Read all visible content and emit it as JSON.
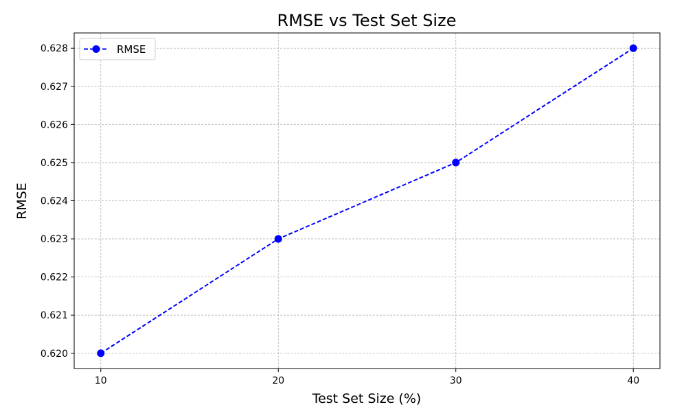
{
  "chart_data": {
    "type": "line",
    "title": "RMSE vs Test Set Size",
    "xlabel": "Test Set Size (%)",
    "ylabel": "RMSE",
    "x": [
      10,
      20,
      30,
      40
    ],
    "series": [
      {
        "name": "RMSE",
        "values": [
          0.62,
          0.623,
          0.625,
          0.628
        ],
        "color": "#0000ff",
        "line_style": "dashed",
        "marker": "circle"
      }
    ],
    "x_ticks": [
      10,
      20,
      30,
      40
    ],
    "x_tick_labels": [
      "10",
      "20",
      "30",
      "40"
    ],
    "y_ticks": [
      0.62,
      0.621,
      0.622,
      0.623,
      0.624,
      0.625,
      0.626,
      0.627,
      0.628
    ],
    "y_tick_labels": [
      "0.620",
      "0.621",
      "0.622",
      "0.623",
      "0.624",
      "0.625",
      "0.626",
      "0.627",
      "0.628"
    ],
    "xlim": [
      8.5,
      41.5
    ],
    "ylim": [
      0.6196,
      0.6284
    ],
    "grid": true,
    "legend_position": "top-left"
  }
}
